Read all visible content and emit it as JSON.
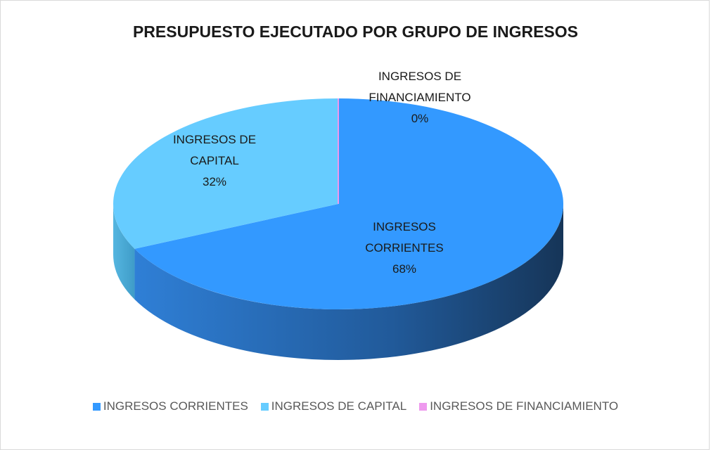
{
  "chart_data": {
    "type": "pie3d",
    "title": "PRESUPUESTO EJECUTADO POR GRUPO DE INGRESOS",
    "categories": [
      "INGRESOS CORRIENTES",
      "INGRESOS DE CAPITAL",
      "INGRESOS DE FINANCIAMIENTO"
    ],
    "values": [
      68,
      32,
      0
    ],
    "value_labels": [
      "68%",
      "32%",
      "0%"
    ],
    "colors": [
      "#3399ff",
      "#66ccff",
      "#ee99ee"
    ],
    "legend": "bottom"
  }
}
